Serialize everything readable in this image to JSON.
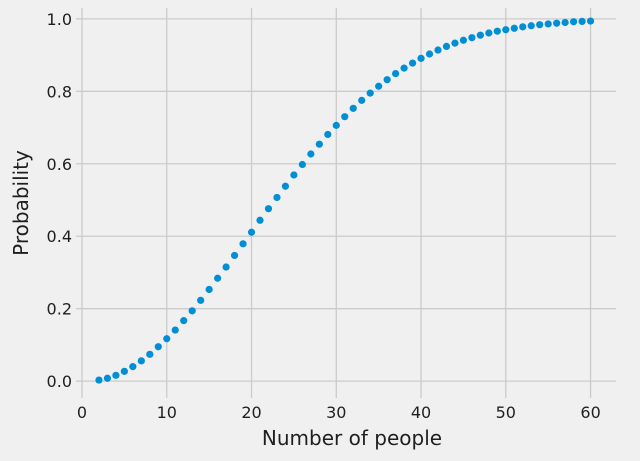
{
  "chart_data": {
    "type": "scatter",
    "title": "",
    "xlabel": "Number of people",
    "ylabel": "Probability",
    "xlim": [
      0,
      63
    ],
    "ylim": [
      -0.03,
      1.03
    ],
    "x_ticks": [
      0,
      10,
      20,
      30,
      40,
      50,
      60
    ],
    "x_tick_labels": [
      "0",
      "10",
      "20",
      "30",
      "40",
      "50",
      "60"
    ],
    "y_ticks": [
      0.0,
      0.2,
      0.4,
      0.6,
      0.8,
      1.0
    ],
    "y_tick_labels": [
      "0.0",
      "0.2",
      "0.4",
      "0.6",
      "0.8",
      "1.0"
    ],
    "grid": true,
    "background_color": "#f0f0f0",
    "grid_color": "#cbcbcb",
    "marker_color": "#008fd5",
    "series": [
      {
        "x": [
          2,
          3,
          4,
          5,
          6,
          7,
          8,
          9,
          10,
          11,
          12,
          13,
          14,
          15,
          16,
          17,
          18,
          19,
          20,
          21,
          22,
          23,
          24,
          25,
          26,
          27,
          28,
          29,
          30,
          31,
          32,
          33,
          34,
          35,
          36,
          37,
          38,
          39,
          40,
          41,
          42,
          43,
          44,
          45,
          46,
          47,
          48,
          49,
          50,
          51,
          52,
          53,
          54,
          55,
          56,
          57,
          58,
          59,
          60
        ],
        "y": [
          0.003,
          0.008,
          0.016,
          0.027,
          0.04,
          0.056,
          0.074,
          0.095,
          0.117,
          0.141,
          0.167,
          0.194,
          0.223,
          0.253,
          0.284,
          0.315,
          0.347,
          0.379,
          0.411,
          0.444,
          0.476,
          0.507,
          0.538,
          0.569,
          0.598,
          0.627,
          0.654,
          0.681,
          0.706,
          0.73,
          0.753,
          0.775,
          0.795,
          0.814,
          0.832,
          0.849,
          0.864,
          0.878,
          0.891,
          0.903,
          0.914,
          0.924,
          0.933,
          0.941,
          0.948,
          0.955,
          0.961,
          0.966,
          0.97,
          0.974,
          0.978,
          0.981,
          0.984,
          0.986,
          0.988,
          0.99,
          0.992,
          0.993,
          0.994
        ]
      }
    ]
  }
}
